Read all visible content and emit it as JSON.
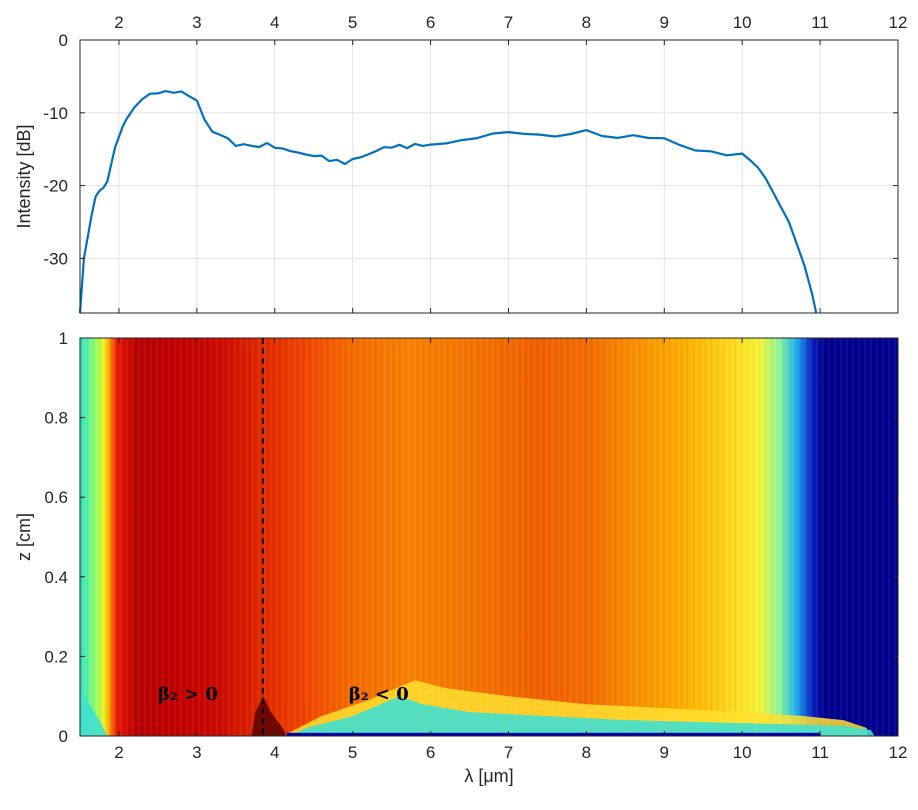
{
  "chart_data": [
    {
      "type": "line",
      "title": "",
      "xlabel": "",
      "ylabel": "Intensity [dB]",
      "xlim": [
        1.5,
        12
      ],
      "ylim": [
        -37.5,
        0
      ],
      "x_ticks": [
        "2",
        "3",
        "4",
        "5",
        "6",
        "7",
        "8",
        "9",
        "10",
        "11",
        "12"
      ],
      "y_ticks": [
        "0",
        "-10",
        "-20",
        "-30"
      ],
      "x_tick_position": "top",
      "grid": true,
      "series": [
        {
          "color": "#0072BD",
          "x": [
            1.5,
            1.55,
            1.6,
            1.65,
            1.7,
            1.75,
            1.8,
            1.85,
            1.9,
            1.95,
            2.0,
            2.05,
            2.1,
            2.2,
            2.3,
            2.4,
            2.5,
            2.6,
            2.7,
            2.8,
            2.9,
            3.0,
            3.1,
            3.2,
            3.3,
            3.4,
            3.5,
            3.6,
            3.7,
            3.8,
            3.9,
            4.0,
            4.1,
            4.2,
            4.3,
            4.4,
            4.5,
            4.6,
            4.7,
            4.8,
            4.9,
            5.0,
            5.1,
            5.2,
            5.3,
            5.4,
            5.5,
            5.6,
            5.7,
            5.8,
            5.9,
            6.0,
            6.2,
            6.4,
            6.6,
            6.8,
            7.0,
            7.2,
            7.4,
            7.6,
            7.8,
            8.0,
            8.2,
            8.4,
            8.6,
            8.8,
            9.0,
            9.2,
            9.4,
            9.6,
            9.8,
            10.0,
            10.1,
            10.2,
            10.3,
            10.4,
            10.5,
            10.6,
            10.7,
            10.8,
            10.9,
            10.95
          ],
          "y": [
            -37.5,
            -30,
            -27,
            -24,
            -21.5,
            -21,
            -20.5,
            -19.5,
            -17,
            -14.5,
            -13,
            -11.5,
            -10.5,
            -9,
            -8,
            -7.4,
            -7.5,
            -7.3,
            -7.6,
            -7.4,
            -8,
            -8.5,
            -11,
            -12.5,
            -12.8,
            -13.2,
            -14.2,
            -14,
            -14.3,
            -14.6,
            -14.2,
            -15,
            -15.2,
            -15.6,
            -15.8,
            -16,
            -16.1,
            -15.9,
            -16.5,
            -16.2,
            -16.7,
            -16,
            -15.8,
            -15.5,
            -15.2,
            -14.8,
            -15,
            -14.7,
            -15.2,
            -14.6,
            -14.8,
            -14.5,
            -14.2,
            -13.6,
            -13.2,
            -12.5,
            -12.3,
            -12.6,
            -12.8,
            -13.2,
            -13,
            -12.6,
            -13.5,
            -13.8,
            -13.4,
            -13.7,
            -13.6,
            -14.4,
            -15,
            -15,
            -15.5,
            -15.6,
            -16.5,
            -17.5,
            -19,
            -21,
            -23,
            -25,
            -28,
            -31,
            -35,
            -37.5
          ]
        }
      ]
    },
    {
      "type": "heatmap",
      "title": "",
      "xlabel": "λ [μm]",
      "ylabel": "z [cm]",
      "xlim": [
        1.5,
        12
      ],
      "ylim": [
        0,
        1
      ],
      "x_ticks": [
        "2",
        "3",
        "4",
        "5",
        "6",
        "7",
        "8",
        "9",
        "10",
        "11",
        "12"
      ],
      "y_ticks": [
        "0",
        "0.2",
        "0.4",
        "0.6",
        "0.8",
        "1"
      ],
      "colormap": "jet",
      "dashed_line_x": 3.85,
      "annotations": [
        {
          "text": "β₂ > 0",
          "x": 2.5,
          "y": 0.09
        },
        {
          "text": "β₂ < 0",
          "x": 4.95,
          "y": 0.09
        }
      ]
    }
  ]
}
